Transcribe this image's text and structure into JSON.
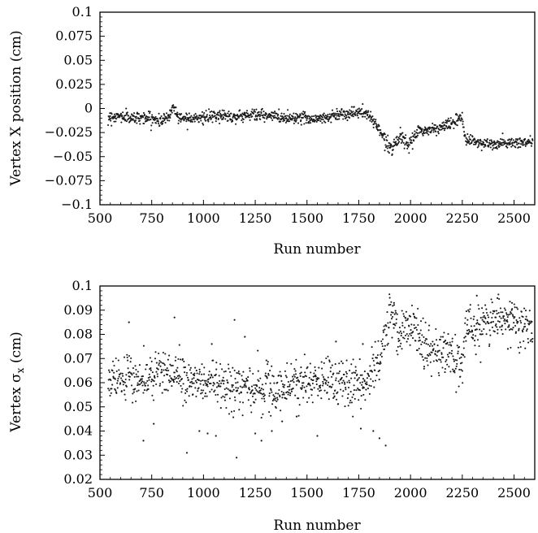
{
  "chart_data": [
    {
      "type": "scatter",
      "xlabel": "Run number",
      "ylabel": "Vertex X position (cm)",
      "xlim": [
        500,
        2600
      ],
      "ylim": [
        -0.1,
        0.1
      ],
      "xticks": [
        "500",
        "750",
        "1000",
        "1250",
        "1500",
        "1750",
        "2000",
        "2250",
        "2500"
      ],
      "yticks": [
        "−0.1",
        "−0.075",
        "−0.05",
        "−0.025",
        "0",
        "0.025",
        "0.05",
        "0.075",
        "0.1"
      ],
      "marker_color": "#1a1a1a",
      "trend": [
        {
          "x": 540,
          "y": -0.009
        },
        {
          "x": 600,
          "y": -0.008
        },
        {
          "x": 650,
          "y": -0.01
        },
        {
          "x": 700,
          "y": -0.009
        },
        {
          "x": 760,
          "y": -0.011
        },
        {
          "x": 800,
          "y": -0.013
        },
        {
          "x": 840,
          "y": -0.006
        },
        {
          "x": 855,
          "y": 0.003
        },
        {
          "x": 880,
          "y": -0.01
        },
        {
          "x": 950,
          "y": -0.009
        },
        {
          "x": 1000,
          "y": -0.01
        },
        {
          "x": 1060,
          "y": -0.008
        },
        {
          "x": 1100,
          "y": -0.007
        },
        {
          "x": 1150,
          "y": -0.009
        },
        {
          "x": 1200,
          "y": -0.007
        },
        {
          "x": 1250,
          "y": -0.006
        },
        {
          "x": 1300,
          "y": -0.008
        },
        {
          "x": 1350,
          "y": -0.008
        },
        {
          "x": 1400,
          "y": -0.01
        },
        {
          "x": 1450,
          "y": -0.009
        },
        {
          "x": 1500,
          "y": -0.01
        },
        {
          "x": 1550,
          "y": -0.011
        },
        {
          "x": 1600,
          "y": -0.009
        },
        {
          "x": 1650,
          "y": -0.006
        },
        {
          "x": 1700,
          "y": -0.005
        },
        {
          "x": 1750,
          "y": -0.004
        },
        {
          "x": 1790,
          "y": -0.006
        },
        {
          "x": 1810,
          "y": -0.01
        },
        {
          "x": 1830,
          "y": -0.015
        },
        {
          "x": 1850,
          "y": -0.022
        },
        {
          "x": 1870,
          "y": -0.03
        },
        {
          "x": 1890,
          "y": -0.037
        },
        {
          "x": 1910,
          "y": -0.041
        },
        {
          "x": 1930,
          "y": -0.034
        },
        {
          "x": 1950,
          "y": -0.028
        },
        {
          "x": 1970,
          "y": -0.036
        },
        {
          "x": 1990,
          "y": -0.039
        },
        {
          "x": 2010,
          "y": -0.033
        },
        {
          "x": 2040,
          "y": -0.022
        },
        {
          "x": 2070,
          "y": -0.024
        },
        {
          "x": 2100,
          "y": -0.021
        },
        {
          "x": 2130,
          "y": -0.022
        },
        {
          "x": 2160,
          "y": -0.018
        },
        {
          "x": 2190,
          "y": -0.016
        },
        {
          "x": 2220,
          "y": -0.013
        },
        {
          "x": 2250,
          "y": -0.011
        },
        {
          "x": 2265,
          "y": -0.031
        },
        {
          "x": 2300,
          "y": -0.034
        },
        {
          "x": 2350,
          "y": -0.036
        },
        {
          "x": 2400,
          "y": -0.038
        },
        {
          "x": 2450,
          "y": -0.036
        },
        {
          "x": 2500,
          "y": -0.036
        },
        {
          "x": 2550,
          "y": -0.035
        },
        {
          "x": 2590,
          "y": -0.035
        }
      ],
      "spread": 0.003
    },
    {
      "type": "scatter",
      "xlabel": "Run number",
      "ylabel_main": "Vertex σ",
      "ylabel_sub": "x",
      "ylabel_unit": " (cm)",
      "xlim": [
        500,
        2600
      ],
      "ylim": [
        0.02,
        0.1
      ],
      "xticks": [
        "500",
        "750",
        "1000",
        "1250",
        "1500",
        "1750",
        "2000",
        "2250",
        "2500"
      ],
      "yticks": [
        "0.02",
        "0.03",
        "0.04",
        "0.05",
        "0.06",
        "0.07",
        "0.08",
        "0.09",
        "0.1"
      ],
      "marker_color": "#1a1a1a",
      "trend": [
        {
          "x": 540,
          "y": 0.062
        },
        {
          "x": 600,
          "y": 0.061
        },
        {
          "x": 650,
          "y": 0.062
        },
        {
          "x": 700,
          "y": 0.061
        },
        {
          "x": 750,
          "y": 0.063
        },
        {
          "x": 800,
          "y": 0.065
        },
        {
          "x": 850,
          "y": 0.063
        },
        {
          "x": 900,
          "y": 0.061
        },
        {
          "x": 1000,
          "y": 0.06
        },
        {
          "x": 1100,
          "y": 0.059
        },
        {
          "x": 1200,
          "y": 0.058
        },
        {
          "x": 1300,
          "y": 0.057
        },
        {
          "x": 1400,
          "y": 0.058
        },
        {
          "x": 1500,
          "y": 0.06
        },
        {
          "x": 1600,
          "y": 0.062
        },
        {
          "x": 1700,
          "y": 0.059
        },
        {
          "x": 1780,
          "y": 0.061
        },
        {
          "x": 1810,
          "y": 0.062
        },
        {
          "x": 1840,
          "y": 0.068
        },
        {
          "x": 1870,
          "y": 0.076
        },
        {
          "x": 1890,
          "y": 0.086
        },
        {
          "x": 1920,
          "y": 0.087
        },
        {
          "x": 1950,
          "y": 0.078
        },
        {
          "x": 1980,
          "y": 0.083
        },
        {
          "x": 2010,
          "y": 0.084
        },
        {
          "x": 2040,
          "y": 0.079
        },
        {
          "x": 2070,
          "y": 0.074
        },
        {
          "x": 2100,
          "y": 0.075
        },
        {
          "x": 2140,
          "y": 0.072
        },
        {
          "x": 2180,
          "y": 0.071
        },
        {
          "x": 2220,
          "y": 0.068
        },
        {
          "x": 2250,
          "y": 0.066
        },
        {
          "x": 2265,
          "y": 0.081
        },
        {
          "x": 2300,
          "y": 0.083
        },
        {
          "x": 2350,
          "y": 0.085
        },
        {
          "x": 2400,
          "y": 0.086
        },
        {
          "x": 2450,
          "y": 0.086
        },
        {
          "x": 2500,
          "y": 0.085
        },
        {
          "x": 2550,
          "y": 0.083
        },
        {
          "x": 2590,
          "y": 0.082
        }
      ],
      "spread": 0.0045,
      "outliers": [
        {
          "x": 640,
          "y": 0.085
        },
        {
          "x": 860,
          "y": 0.087
        },
        {
          "x": 1150,
          "y": 0.086
        },
        {
          "x": 1200,
          "y": 0.079
        },
        {
          "x": 1040,
          "y": 0.076
        },
        {
          "x": 1640,
          "y": 0.077
        },
        {
          "x": 1770,
          "y": 0.076
        },
        {
          "x": 710,
          "y": 0.036
        },
        {
          "x": 760,
          "y": 0.043
        },
        {
          "x": 920,
          "y": 0.031
        },
        {
          "x": 1160,
          "y": 0.029
        },
        {
          "x": 1060,
          "y": 0.038
        },
        {
          "x": 1280,
          "y": 0.036
        },
        {
          "x": 1330,
          "y": 0.04
        },
        {
          "x": 1550,
          "y": 0.038
        },
        {
          "x": 1760,
          "y": 0.041
        },
        {
          "x": 1820,
          "y": 0.04
        },
        {
          "x": 1850,
          "y": 0.037
        },
        {
          "x": 1880,
          "y": 0.034
        },
        {
          "x": 980,
          "y": 0.04
        },
        {
          "x": 1020,
          "y": 0.039
        },
        {
          "x": 1380,
          "y": 0.044
        },
        {
          "x": 1450,
          "y": 0.046
        },
        {
          "x": 1250,
          "y": 0.039
        },
        {
          "x": 2470,
          "y": 0.074
        },
        {
          "x": 2320,
          "y": 0.096
        },
        {
          "x": 2420,
          "y": 0.095
        },
        {
          "x": 2490,
          "y": 0.093
        },
        {
          "x": 1920,
          "y": 0.093
        }
      ]
    }
  ]
}
